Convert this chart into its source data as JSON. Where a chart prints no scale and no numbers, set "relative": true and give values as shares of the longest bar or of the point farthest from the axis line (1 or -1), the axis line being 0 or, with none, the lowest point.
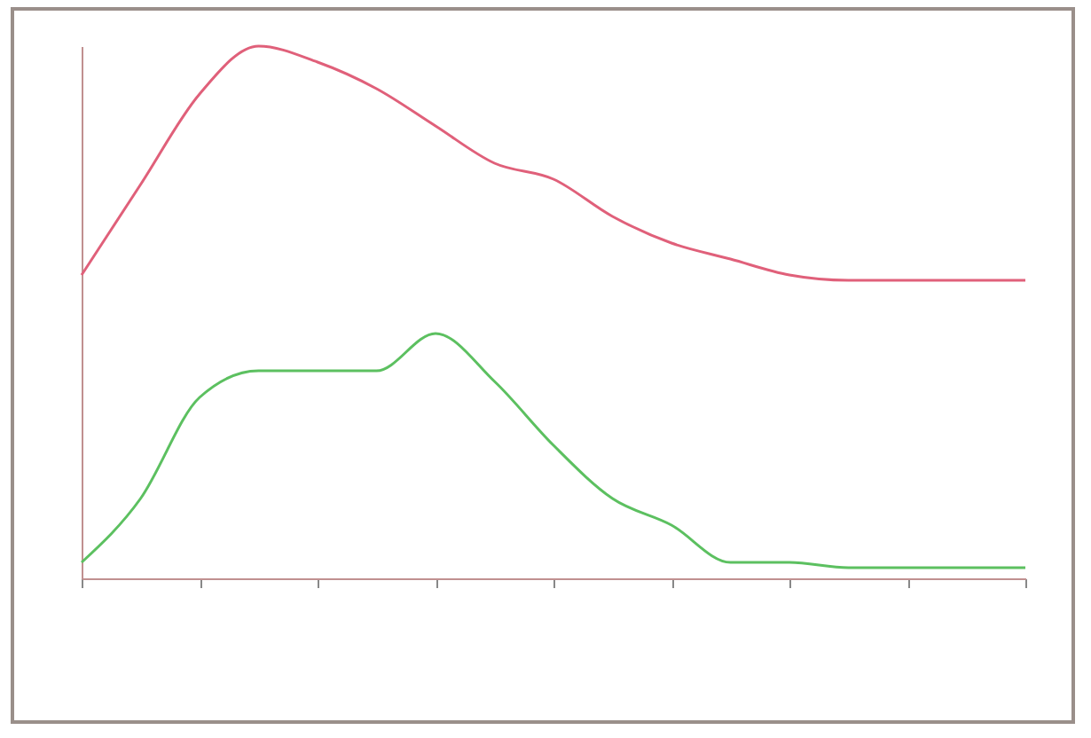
{
  "chart_data": {
    "type": "line",
    "relative": true,
    "categories": [
      null,
      null,
      null,
      null,
      null,
      null,
      null,
      null,
      null,
      null,
      null,
      null,
      null,
      null,
      null,
      null,
      null
    ],
    "series": [
      {
        "color": "#e0607a",
        "values": [
          0.57,
          0.74,
          0.91,
          1.0,
          0.97,
          0.92,
          0.85,
          0.78,
          0.75,
          0.68,
          0.63,
          0.6,
          0.57,
          0.56,
          0.56,
          0.56,
          0.56
        ]
      },
      {
        "color": "#5cc060",
        "values": [
          0.03,
          0.15,
          0.34,
          0.39,
          0.39,
          0.39,
          0.46,
          0.37,
          0.25,
          0.15,
          0.1,
          0.03,
          0.03,
          0.02,
          0.02,
          0.02,
          0.02
        ]
      }
    ]
  }
}
